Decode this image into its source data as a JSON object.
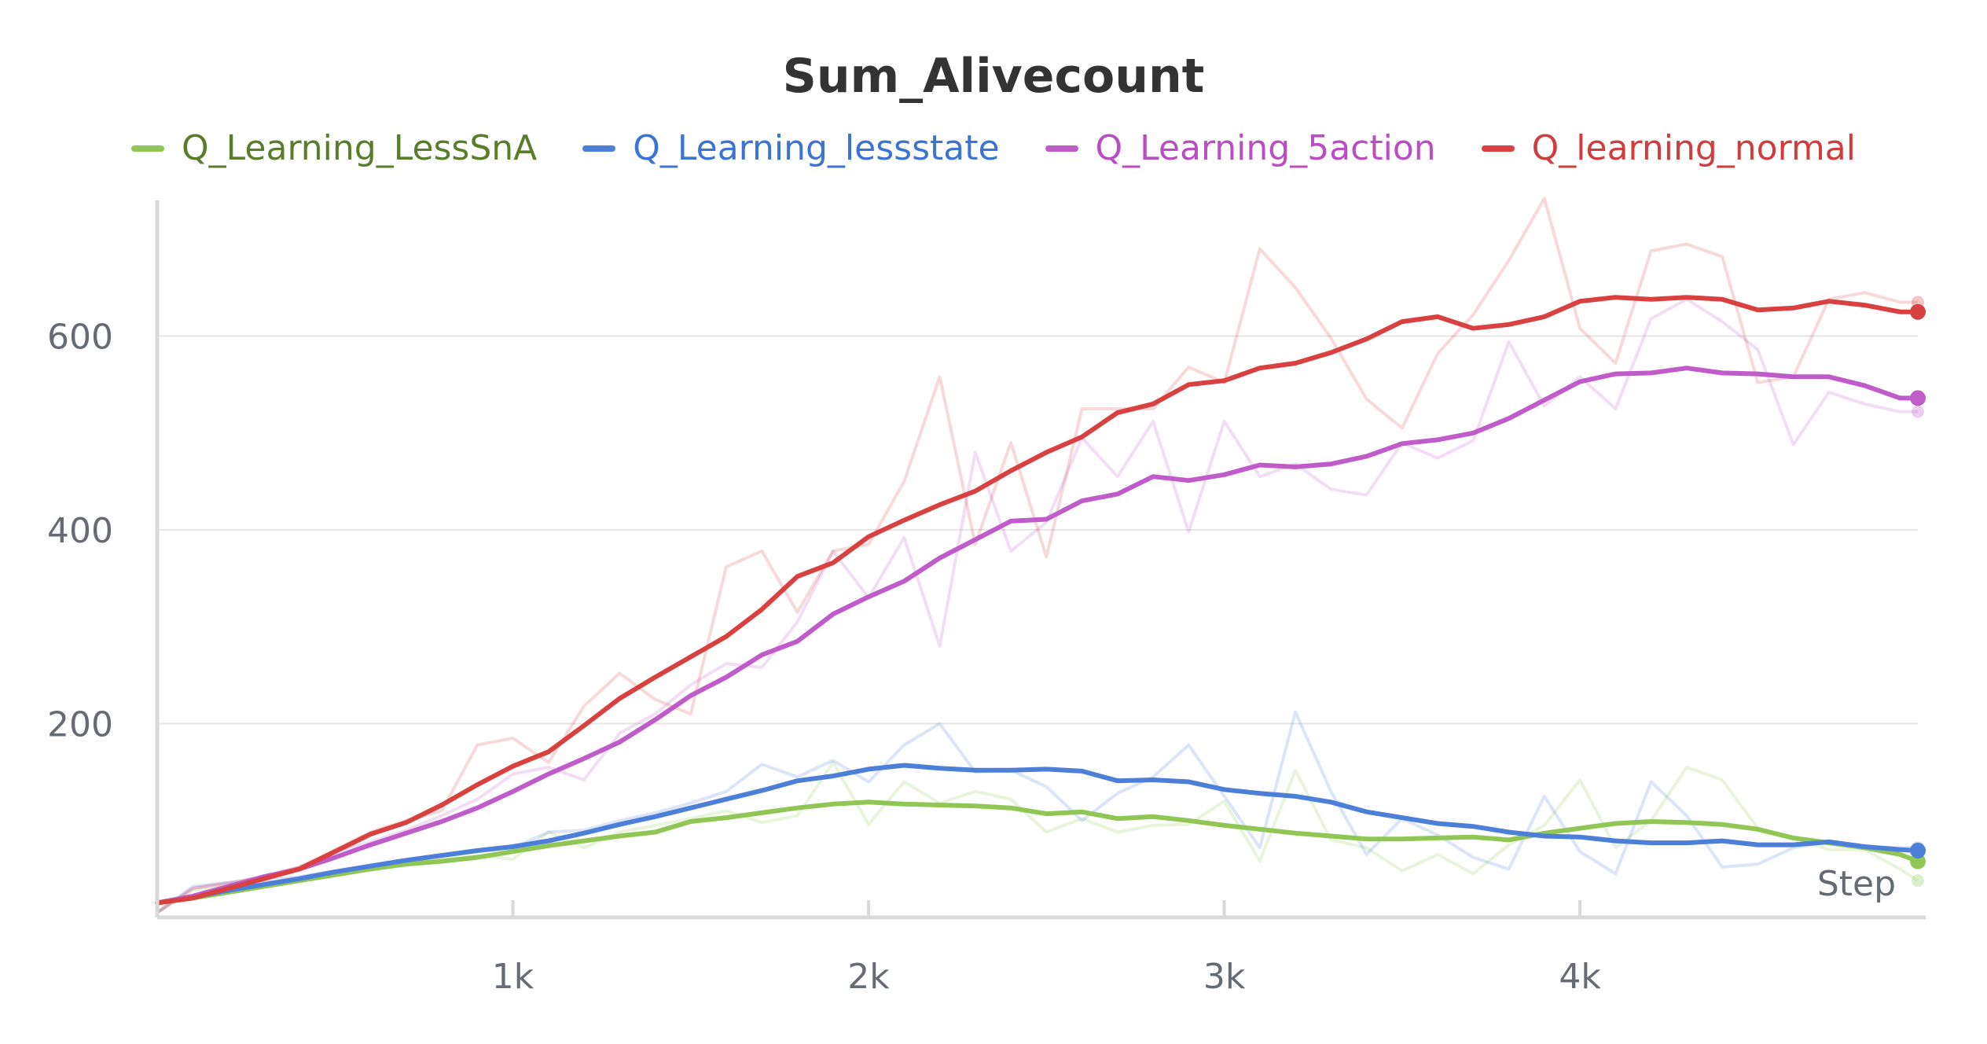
{
  "chart_data": {
    "type": "line",
    "title": "Sum_Alivecount",
    "xlabel": "Step",
    "ylabel": "",
    "xlim": [
      0,
      4950
    ],
    "ylim": [
      0,
      740
    ],
    "xticks": [
      1000,
      2000,
      3000,
      4000
    ],
    "xtick_labels": [
      "1k",
      "2k",
      "3k",
      "4k"
    ],
    "yticks": [
      200,
      400,
      600
    ],
    "ytick_labels": [
      "200",
      "400",
      "600"
    ],
    "grid": "horizontal",
    "legend_position": "top-center",
    "series": [
      {
        "name": "Q_Learning_LessSnA",
        "color": "#8fc654",
        "label_color": "#5a7d2a",
        "x": [
          0,
          100,
          200,
          300,
          400,
          500,
          600,
          700,
          800,
          900,
          1000,
          1100,
          1200,
          1300,
          1400,
          1500,
          1600,
          1700,
          1800,
          1900,
          2000,
          2100,
          2200,
          2300,
          2400,
          2500,
          2600,
          2700,
          2800,
          2900,
          3000,
          3100,
          3200,
          3300,
          3400,
          3500,
          3600,
          3700,
          3800,
          3900,
          4000,
          4100,
          4200,
          4300,
          4400,
          4500,
          4600,
          4700,
          4800,
          4900,
          4950
        ],
        "smoothed": [
          15,
          20,
          26,
          32,
          38,
          44,
          50,
          55,
          58,
          62,
          68,
          74,
          79,
          84,
          88,
          99,
          103,
          108,
          113,
          117,
          119,
          117,
          116,
          115,
          113,
          107,
          109,
          102,
          104,
          100,
          95,
          91,
          87,
          84,
          81,
          81,
          82,
          83,
          80,
          87,
          92,
          97,
          99,
          98,
          96,
          91,
          82,
          77,
          72,
          65,
          58
        ],
        "raw": [
          5,
          28,
          32,
          35,
          40,
          46,
          52,
          58,
          60,
          64,
          60,
          88,
          72,
          88,
          95,
          102,
          110,
          98,
          105,
          160,
          96,
          140,
          118,
          130,
          122,
          88,
          102,
          88,
          95,
          96,
          120,
          58,
          152,
          80,
          72,
          48,
          65,
          45,
          75,
          95,
          142,
          72,
          100,
          155,
          142,
          92,
          82,
          70,
          70,
          50,
          38
        ]
      },
      {
        "name": "Q_Learning_lessstate",
        "color": "#4b7fd8",
        "label_color": "#3b74d3",
        "x": [
          0,
          100,
          200,
          300,
          400,
          500,
          600,
          700,
          800,
          900,
          1000,
          1100,
          1200,
          1300,
          1400,
          1500,
          1600,
          1700,
          1800,
          1900,
          2000,
          2100,
          2200,
          2300,
          2400,
          2500,
          2600,
          2700,
          2800,
          2900,
          3000,
          3100,
          3200,
          3300,
          3400,
          3500,
          3600,
          3700,
          3800,
          3900,
          4000,
          4100,
          4200,
          4300,
          4400,
          4500,
          4600,
          4700,
          4800,
          4900,
          4950
        ],
        "smoothed": [
          15,
          21,
          28,
          34,
          40,
          47,
          53,
          59,
          64,
          69,
          73,
          79,
          87,
          96,
          104,
          113,
          122,
          131,
          141,
          146,
          153,
          157,
          154,
          152,
          152,
          153,
          151,
          141,
          142,
          140,
          132,
          128,
          125,
          119,
          109,
          103,
          97,
          94,
          88,
          84,
          83,
          79,
          77,
          77,
          79,
          75,
          75,
          78,
          73,
          70,
          69
        ],
        "raw": [
          5,
          32,
          36,
          38,
          42,
          48,
          54,
          60,
          63,
          70,
          72,
          88,
          90,
          100,
          108,
          118,
          130,
          158,
          145,
          162,
          140,
          178,
          200,
          150,
          152,
          135,
          100,
          128,
          145,
          178,
          125,
          72,
          212,
          130,
          65,
          102,
          85,
          62,
          50,
          125,
          68,
          45,
          140,
          105,
          52,
          55,
          72,
          78,
          72,
          72,
          72
        ]
      },
      {
        "name": "Q_Learning_5action",
        "color": "#c05cc9",
        "label_color": "#bb4dc3",
        "x": [
          0,
          100,
          200,
          300,
          400,
          500,
          600,
          700,
          800,
          900,
          1000,
          1100,
          1200,
          1300,
          1400,
          1500,
          1600,
          1700,
          1800,
          1900,
          2000,
          2100,
          2200,
          2300,
          2400,
          2500,
          2600,
          2700,
          2800,
          2900,
          3000,
          3100,
          3200,
          3300,
          3400,
          3500,
          3600,
          3700,
          3800,
          3900,
          4000,
          4100,
          4200,
          4300,
          4400,
          4500,
          4600,
          4700,
          4800,
          4900,
          4950
        ],
        "smoothed": [
          15,
          22,
          32,
          42,
          50,
          62,
          75,
          87,
          99,
          113,
          130,
          148,
          164,
          181,
          204,
          229,
          248,
          271,
          285,
          313,
          331,
          347,
          371,
          390,
          409,
          411,
          430,
          437,
          455,
          451,
          457,
          467,
          465,
          468,
          476,
          489,
          493,
          500,
          515,
          534,
          553,
          561,
          562,
          567,
          562,
          561,
          558,
          558,
          549,
          536,
          536
        ],
        "raw": [
          5,
          30,
          36,
          42,
          52,
          68,
          78,
          90,
          105,
          122,
          148,
          155,
          142,
          190,
          210,
          240,
          262,
          258,
          305,
          378,
          330,
          392,
          280,
          480,
          378,
          408,
          495,
          455,
          512,
          398,
          512,
          455,
          468,
          442,
          436,
          490,
          474,
          492,
          594,
          528,
          558,
          525,
          618,
          638,
          615,
          586,
          488,
          542,
          530,
          522,
          522
        ]
      },
      {
        "name": "Q_learning_normal",
        "color": "#d94141",
        "label_color": "#d03d3d",
        "x": [
          0,
          100,
          200,
          300,
          400,
          500,
          600,
          700,
          800,
          900,
          1000,
          1100,
          1200,
          1300,
          1400,
          1500,
          1600,
          1700,
          1800,
          1900,
          2000,
          2100,
          2200,
          2300,
          2400,
          2500,
          2600,
          2700,
          2800,
          2900,
          3000,
          3100,
          3200,
          3300,
          3400,
          3500,
          3600,
          3700,
          3800,
          3900,
          4000,
          4100,
          4200,
          4300,
          4400,
          4500,
          4600,
          4700,
          4800,
          4900,
          4950
        ],
        "smoothed": [
          15,
          20,
          30,
          40,
          50,
          68,
          86,
          98,
          116,
          137,
          156,
          171,
          198,
          226,
          248,
          269,
          290,
          318,
          352,
          366,
          393,
          410,
          426,
          440,
          461,
          480,
          496,
          521,
          530,
          550,
          554,
          567,
          572,
          583,
          597,
          615,
          620,
          608,
          612,
          620,
          636,
          640,
          638,
          640,
          638,
          627,
          629,
          636,
          632,
          625,
          625
        ],
        "raw": [
          5,
          30,
          35,
          42,
          52,
          70,
          88,
          100,
          110,
          178,
          185,
          160,
          218,
          252,
          225,
          210,
          362,
          378,
          315,
          378,
          385,
          450,
          558,
          385,
          490,
          372,
          525,
          525,
          525,
          568,
          552,
          690,
          650,
          598,
          535,
          505,
          582,
          622,
          678,
          742,
          608,
          572,
          688,
          695,
          682,
          552,
          558,
          638,
          645,
          635,
          635
        ]
      }
    ]
  },
  "endpoint_markers": "dot"
}
